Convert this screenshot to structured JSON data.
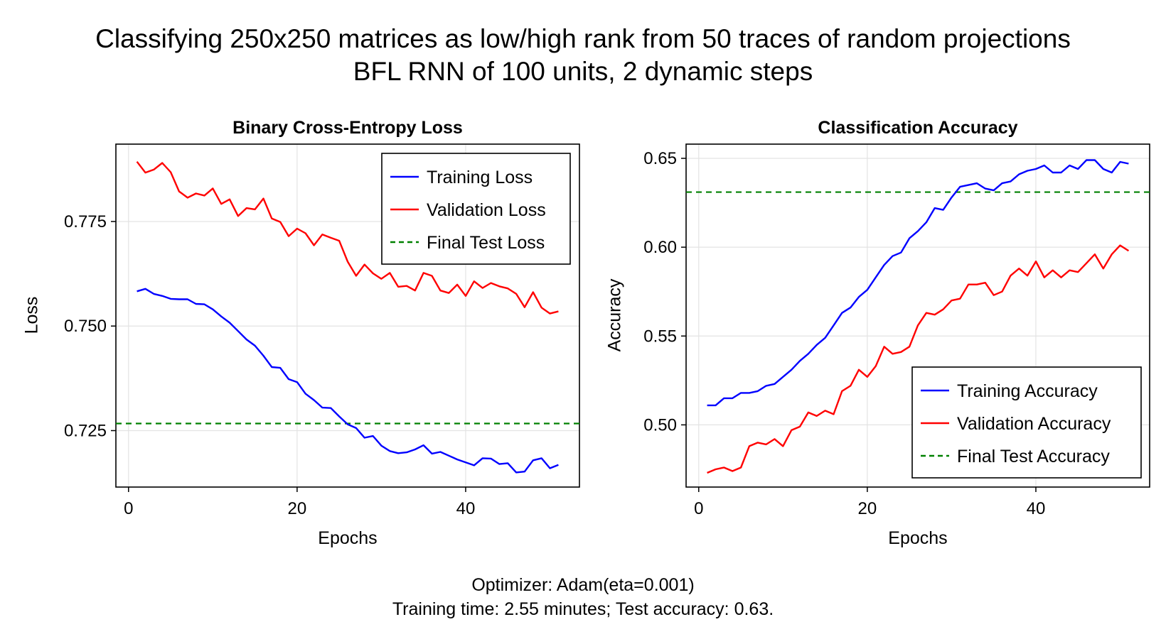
{
  "figure": {
    "title_line1": "Classifying 250x250 matrices as low/high rank from 50 traces of random projections",
    "title_line2": "BFL RNN of 100 units, 2 dynamic steps",
    "footer_line1": "Optimizer: Adam(eta=0.001)",
    "footer_line2": "Training time: 2.55 minutes; Test accuracy: 0.63."
  },
  "chart_data": [
    {
      "type": "line",
      "title": "Binary Cross-Entropy Loss",
      "xlabel": "Epochs",
      "ylabel": "Loss",
      "xlim": [
        -1.5,
        53.5
      ],
      "ylim": [
        0.7115,
        0.7935
      ],
      "xticks": [
        0,
        20,
        40
      ],
      "yticks": [
        0.725,
        0.75,
        0.775
      ],
      "ytick_labels": [
        "0.725",
        "0.750",
        "0.775"
      ],
      "grid": true,
      "legend_position": "top-right",
      "x": [
        1,
        2,
        3,
        4,
        5,
        6,
        7,
        8,
        9,
        10,
        11,
        12,
        13,
        14,
        15,
        16,
        17,
        18,
        19,
        20,
        21,
        22,
        23,
        24,
        25,
        26,
        27,
        28,
        29,
        30,
        31,
        32,
        33,
        34,
        35,
        36,
        37,
        38,
        39,
        40,
        41,
        42,
        43,
        44,
        45,
        46,
        47,
        48,
        49,
        50,
        51
      ],
      "series": [
        {
          "name": "Training Loss",
          "color": "#0000ff",
          "style": "solid",
          "values": [
            0.7583,
            0.7589,
            0.7577,
            0.7572,
            0.7565,
            0.7564,
            0.7564,
            0.7553,
            0.7552,
            0.754,
            0.7523,
            0.7508,
            0.7488,
            0.7468,
            0.7453,
            0.7429,
            0.7402,
            0.74,
            0.7373,
            0.7366,
            0.7338,
            0.7323,
            0.7305,
            0.7304,
            0.7284,
            0.7265,
            0.7256,
            0.7233,
            0.7237,
            0.7214,
            0.7201,
            0.7196,
            0.7198,
            0.7205,
            0.7215,
            0.7195,
            0.7199,
            0.719,
            0.7181,
            0.7174,
            0.7167,
            0.7184,
            0.7183,
            0.717,
            0.7172,
            0.715,
            0.7152,
            0.7179,
            0.7184,
            0.716,
            0.7168
          ]
        },
        {
          "name": "Validation Loss",
          "color": "#ff0000",
          "style": "solid",
          "values": [
            0.7893,
            0.7867,
            0.7874,
            0.789,
            0.7868,
            0.7822,
            0.7807,
            0.7817,
            0.7812,
            0.7829,
            0.7792,
            0.7803,
            0.7763,
            0.7782,
            0.7779,
            0.7805,
            0.7757,
            0.7749,
            0.7715,
            0.7733,
            0.7722,
            0.7693,
            0.7719,
            0.7711,
            0.7704,
            0.7654,
            0.762,
            0.7647,
            0.7626,
            0.7613,
            0.7627,
            0.7594,
            0.7596,
            0.7585,
            0.7627,
            0.762,
            0.7585,
            0.7579,
            0.7599,
            0.7572,
            0.7607,
            0.7591,
            0.7603,
            0.7595,
            0.759,
            0.7577,
            0.7545,
            0.7581,
            0.7544,
            0.753,
            0.7535
          ]
        }
      ],
      "hlines": [
        {
          "name": "Final Test Loss",
          "color": "#008000",
          "style": "dashed",
          "value": 0.7267
        }
      ]
    },
    {
      "type": "line",
      "title": "Classification Accuracy",
      "xlabel": "Epochs",
      "ylabel": "Accuracy",
      "xlim": [
        -1.5,
        53.5
      ],
      "ylim": [
        0.465,
        0.658
      ],
      "xticks": [
        0,
        20,
        40
      ],
      "yticks": [
        0.5,
        0.55,
        0.6,
        0.65
      ],
      "ytick_labels": [
        "0.50",
        "0.55",
        "0.60",
        "0.65"
      ],
      "grid": true,
      "legend_position": "bottom-right",
      "x": [
        1,
        2,
        3,
        4,
        5,
        6,
        7,
        8,
        9,
        10,
        11,
        12,
        13,
        14,
        15,
        16,
        17,
        18,
        19,
        20,
        21,
        22,
        23,
        24,
        25,
        26,
        27,
        28,
        29,
        30,
        31,
        32,
        33,
        34,
        35,
        36,
        37,
        38,
        39,
        40,
        41,
        42,
        43,
        44,
        45,
        46,
        47,
        48,
        49,
        50,
        51
      ],
      "series": [
        {
          "name": "Training Accuracy",
          "color": "#0000ff",
          "style": "solid",
          "values": [
            0.511,
            0.511,
            0.515,
            0.515,
            0.518,
            0.518,
            0.519,
            0.522,
            0.523,
            0.527,
            0.531,
            0.536,
            0.54,
            0.545,
            0.549,
            0.556,
            0.563,
            0.566,
            0.572,
            0.576,
            0.583,
            0.59,
            0.595,
            0.597,
            0.605,
            0.609,
            0.614,
            0.622,
            0.621,
            0.628,
            0.634,
            0.635,
            0.636,
            0.633,
            0.632,
            0.636,
            0.637,
            0.641,
            0.643,
            0.644,
            0.646,
            0.642,
            0.642,
            0.646,
            0.644,
            0.649,
            0.649,
            0.644,
            0.642,
            0.648,
            0.647
          ]
        },
        {
          "name": "Validation Accuracy",
          "color": "#ff0000",
          "style": "solid",
          "values": [
            0.473,
            0.475,
            0.476,
            0.474,
            0.476,
            0.488,
            0.49,
            0.489,
            0.492,
            0.488,
            0.497,
            0.499,
            0.507,
            0.505,
            0.508,
            0.506,
            0.519,
            0.522,
            0.531,
            0.527,
            0.533,
            0.544,
            0.54,
            0.541,
            0.544,
            0.556,
            0.563,
            0.562,
            0.565,
            0.57,
            0.571,
            0.579,
            0.579,
            0.58,
            0.573,
            0.575,
            0.584,
            0.588,
            0.584,
            0.592,
            0.583,
            0.587,
            0.583,
            0.587,
            0.586,
            0.591,
            0.596,
            0.588,
            0.596,
            0.601,
            0.598
          ]
        }
      ],
      "hlines": [
        {
          "name": "Final Test Accuracy",
          "color": "#008000",
          "style": "dashed",
          "value": 0.631
        }
      ]
    }
  ]
}
